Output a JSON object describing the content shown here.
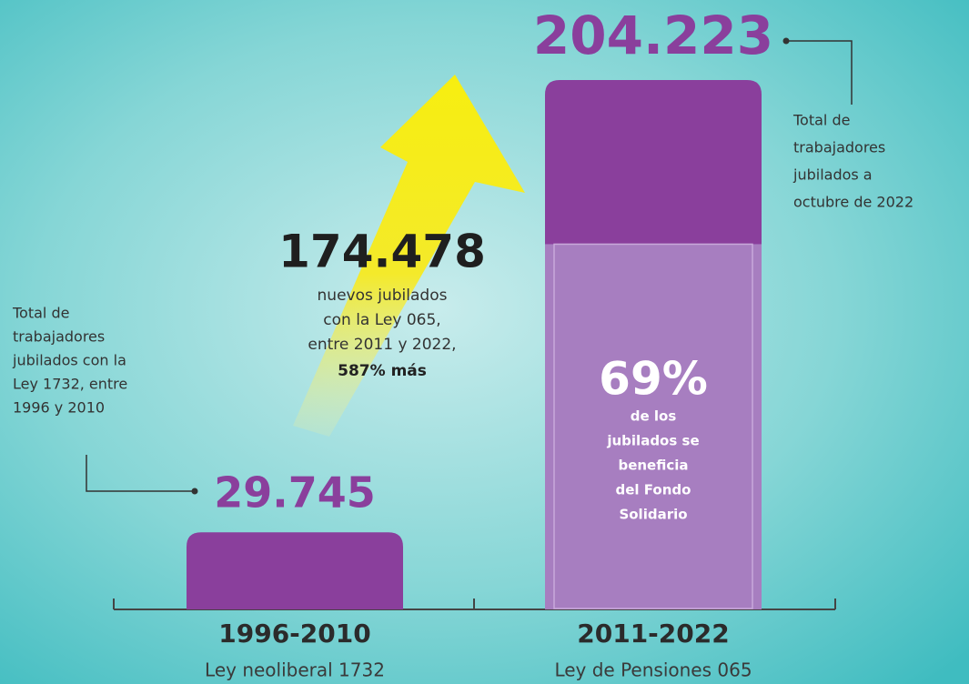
{
  "chart_data": {
    "type": "bar",
    "categories": [
      "1996-2010",
      "2011-2022"
    ],
    "category_subtitles": [
      "Ley neoliberal 1732",
      "Ley de Pensiones 065"
    ],
    "values": [
      29745,
      204223
    ],
    "value_labels": [
      "29.745",
      "204.223"
    ],
    "color": "#8a3f9c",
    "annotations": {
      "left": [
        "Total de",
        "trabajadores",
        "jubilados con la",
        "Ley 1732, entre",
        "1996 y 2010"
      ],
      "right": [
        "Total de",
        "trabajadores",
        "jubilados a",
        "octubre de 2022"
      ]
    },
    "growth": {
      "label": "174.478",
      "lines": [
        "nuevos jubilados",
        "con la Ley 065,",
        "entre 2011 y 2022,"
      ],
      "emphasis": "587% más"
    },
    "share": {
      "value": 69,
      "label": "69%",
      "color": "#a77ec0",
      "lines": [
        "de los",
        "jubilados se",
        "beneficia",
        "del Fondo",
        "Solidario"
      ]
    }
  }
}
